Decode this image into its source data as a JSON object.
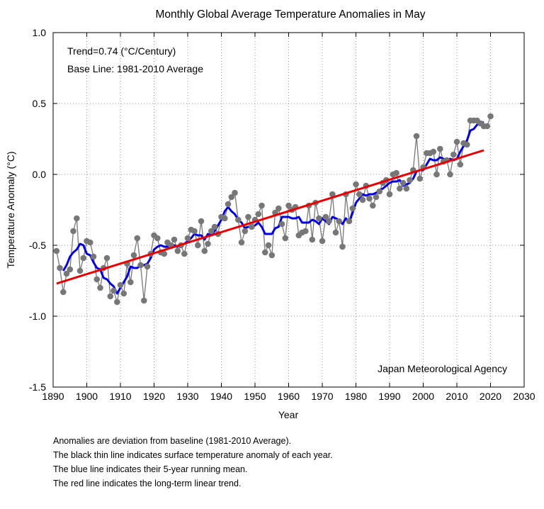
{
  "chart_data": {
    "type": "line",
    "title": "Monthly Global Average Temperature Anomalies in May",
    "xlabel": "Year",
    "ylabel": "Temperature Anomaly (°C)",
    "xlim": [
      1890,
      2030
    ],
    "ylim": [
      -1.5,
      1.0
    ],
    "x_ticks": [
      "1890",
      "1900",
      "1910",
      "1920",
      "1930",
      "1940",
      "1950",
      "1960",
      "1970",
      "1980",
      "1990",
      "2000",
      "2010",
      "2020",
      "2030"
    ],
    "y_ticks": [
      "1.0",
      "0.5",
      "0.0",
      "-0.5",
      "-1.0",
      "-1.5"
    ],
    "grid": true,
    "annotations": {
      "trend": "Trend=0.74 (°C/Century)",
      "baseline": "Base Line: 1981-2010 Average",
      "source": "Japan Meteorological Agency"
    },
    "series": [
      {
        "role": "annual-anomaly",
        "color": "#777777",
        "x": [
          1891,
          1892,
          1893,
          1894,
          1895,
          1896,
          1897,
          1898,
          1899,
          1900,
          1901,
          1902,
          1903,
          1904,
          1905,
          1906,
          1907,
          1908,
          1909,
          1910,
          1911,
          1912,
          1913,
          1914,
          1915,
          1916,
          1917,
          1918,
          1919,
          1920,
          1921,
          1922,
          1923,
          1924,
          1925,
          1926,
          1927,
          1928,
          1929,
          1930,
          1931,
          1932,
          1933,
          1934,
          1935,
          1936,
          1937,
          1938,
          1939,
          1940,
          1941,
          1942,
          1943,
          1944,
          1945,
          1946,
          1947,
          1948,
          1949,
          1950,
          1951,
          1952,
          1953,
          1954,
          1955,
          1956,
          1957,
          1958,
          1959,
          1960,
          1961,
          1962,
          1963,
          1964,
          1965,
          1966,
          1967,
          1968,
          1969,
          1970,
          1971,
          1972,
          1973,
          1974,
          1975,
          1976,
          1977,
          1978,
          1979,
          1980,
          1981,
          1982,
          1983,
          1984,
          1985,
          1986,
          1987,
          1988,
          1989,
          1990,
          1991,
          1992,
          1993,
          1994,
          1995,
          1996,
          1997,
          1998,
          1999,
          2000,
          2001,
          2002,
          2003,
          2004,
          2005,
          2006,
          2007,
          2008,
          2009,
          2010,
          2011,
          2012,
          2013,
          2014,
          2015,
          2016,
          2017,
          2018,
          2019,
          2020
        ],
        "values": [
          -0.54,
          -0.66,
          -0.83,
          -0.7,
          -0.67,
          -0.4,
          -0.31,
          -0.68,
          -0.59,
          -0.47,
          -0.48,
          -0.58,
          -0.74,
          -0.8,
          -0.66,
          -0.59,
          -0.86,
          -0.82,
          -0.9,
          -0.78,
          -0.84,
          -0.63,
          -0.76,
          -0.57,
          -0.45,
          -0.64,
          -0.89,
          -0.65,
          -0.56,
          -0.43,
          -0.45,
          -0.55,
          -0.56,
          -0.48,
          -0.5,
          -0.46,
          -0.54,
          -0.5,
          -0.56,
          -0.45,
          -0.39,
          -0.4,
          -0.5,
          -0.33,
          -0.54,
          -0.49,
          -0.4,
          -0.37,
          -0.42,
          -0.3,
          -0.31,
          -0.21,
          -0.16,
          -0.13,
          -0.32,
          -0.48,
          -0.4,
          -0.3,
          -0.37,
          -0.32,
          -0.28,
          -0.22,
          -0.55,
          -0.5,
          -0.57,
          -0.27,
          -0.24,
          -0.35,
          -0.45,
          -0.22,
          -0.25,
          -0.23,
          -0.43,
          -0.41,
          -0.4,
          -0.22,
          -0.46,
          -0.2,
          -0.31,
          -0.47,
          -0.3,
          -0.33,
          -0.14,
          -0.41,
          -0.33,
          -0.51,
          -0.14,
          -0.33,
          -0.24,
          -0.07,
          -0.14,
          -0.18,
          -0.08,
          -0.17,
          -0.22,
          -0.16,
          -0.12,
          -0.06,
          -0.04,
          -0.14,
          0.0,
          0.01,
          -0.1,
          -0.06,
          -0.1,
          -0.04,
          0.03,
          0.27,
          -0.03,
          0.05,
          0.15,
          0.15,
          0.16,
          0.0,
          0.18,
          0.09,
          0.1,
          0.0,
          0.14,
          0.23,
          0.07,
          0.22,
          0.21,
          0.38,
          0.38,
          0.38,
          0.36,
          0.34,
          0.34,
          0.41
        ]
      },
      {
        "role": "5-year-running-mean",
        "color": "#0000ee",
        "x": [
          1893,
          1894,
          1895,
          1896,
          1897,
          1898,
          1899,
          1900,
          1901,
          1902,
          1903,
          1904,
          1905,
          1906,
          1907,
          1908,
          1909,
          1910,
          1911,
          1912,
          1913,
          1914,
          1915,
          1916,
          1917,
          1918,
          1919,
          1920,
          1921,
          1922,
          1923,
          1924,
          1925,
          1926,
          1927,
          1928,
          1929,
          1930,
          1931,
          1932,
          1933,
          1934,
          1935,
          1936,
          1937,
          1938,
          1939,
          1940,
          1941,
          1942,
          1943,
          1944,
          1945,
          1946,
          1947,
          1948,
          1949,
          1950,
          1951,
          1952,
          1953,
          1954,
          1955,
          1956,
          1957,
          1958,
          1959,
          1960,
          1961,
          1962,
          1963,
          1964,
          1965,
          1966,
          1967,
          1968,
          1969,
          1970,
          1971,
          1972,
          1973,
          1974,
          1975,
          1976,
          1977,
          1978,
          1979,
          1980,
          1981,
          1982,
          1983,
          1984,
          1985,
          1986,
          1987,
          1988,
          1989,
          1990,
          1991,
          1992,
          1993,
          1994,
          1995,
          1996,
          1997,
          1998,
          1999,
          2000,
          2001,
          2002,
          2003,
          2004,
          2005,
          2006,
          2007,
          2008,
          2009,
          2010,
          2011,
          2012,
          2013,
          2014,
          2015,
          2016,
          2017,
          2018
        ],
        "values": [
          -0.68,
          -0.64,
          -0.58,
          -0.55,
          -0.53,
          -0.49,
          -0.5,
          -0.56,
          -0.57,
          -0.62,
          -0.66,
          -0.67,
          -0.73,
          -0.74,
          -0.77,
          -0.79,
          -0.84,
          -0.8,
          -0.76,
          -0.72,
          -0.65,
          -0.66,
          -0.66,
          -0.64,
          -0.64,
          -0.63,
          -0.59,
          -0.53,
          -0.51,
          -0.5,
          -0.51,
          -0.51,
          -0.51,
          -0.5,
          -0.51,
          -0.5,
          -0.49,
          -0.47,
          -0.45,
          -0.42,
          -0.43,
          -0.43,
          -0.46,
          -0.42,
          -0.43,
          -0.4,
          -0.36,
          -0.32,
          -0.26,
          -0.23,
          -0.26,
          -0.28,
          -0.32,
          -0.34,
          -0.38,
          -0.37,
          -0.37,
          -0.36,
          -0.34,
          -0.37,
          -0.42,
          -0.42,
          -0.42,
          -0.38,
          -0.37,
          -0.3,
          -0.3,
          -0.3,
          -0.31,
          -0.31,
          -0.3,
          -0.34,
          -0.34,
          -0.34,
          -0.32,
          -0.33,
          -0.35,
          -0.31,
          -0.33,
          -0.35,
          -0.3,
          -0.31,
          -0.32,
          -0.35,
          -0.31,
          -0.34,
          -0.27,
          -0.2,
          -0.17,
          -0.14,
          -0.15,
          -0.14,
          -0.14,
          -0.13,
          -0.11,
          -0.1,
          -0.08,
          -0.06,
          -0.05,
          -0.05,
          -0.04,
          -0.08,
          -0.07,
          -0.06,
          -0.03,
          0.02,
          0.03,
          0.03,
          0.07,
          0.11,
          0.1,
          0.1,
          0.12,
          0.11,
          0.1,
          0.11,
          0.1,
          0.11,
          0.16,
          0.2,
          0.24,
          0.31,
          0.32,
          0.35,
          0.36,
          0.37
        ]
      },
      {
        "role": "linear-trend",
        "color": "#ee0000",
        "x": [
          1891,
          2018
        ],
        "values": [
          -0.77,
          0.17
        ]
      }
    ]
  },
  "notes": [
    "Anomalies are deviation from baseline (1981-2010 Average).",
    "The black thin line indicates surface temperature anomaly of each year.",
    "The blue line indicates their 5-year running mean.",
    "The red line indicates the long-term linear trend."
  ]
}
